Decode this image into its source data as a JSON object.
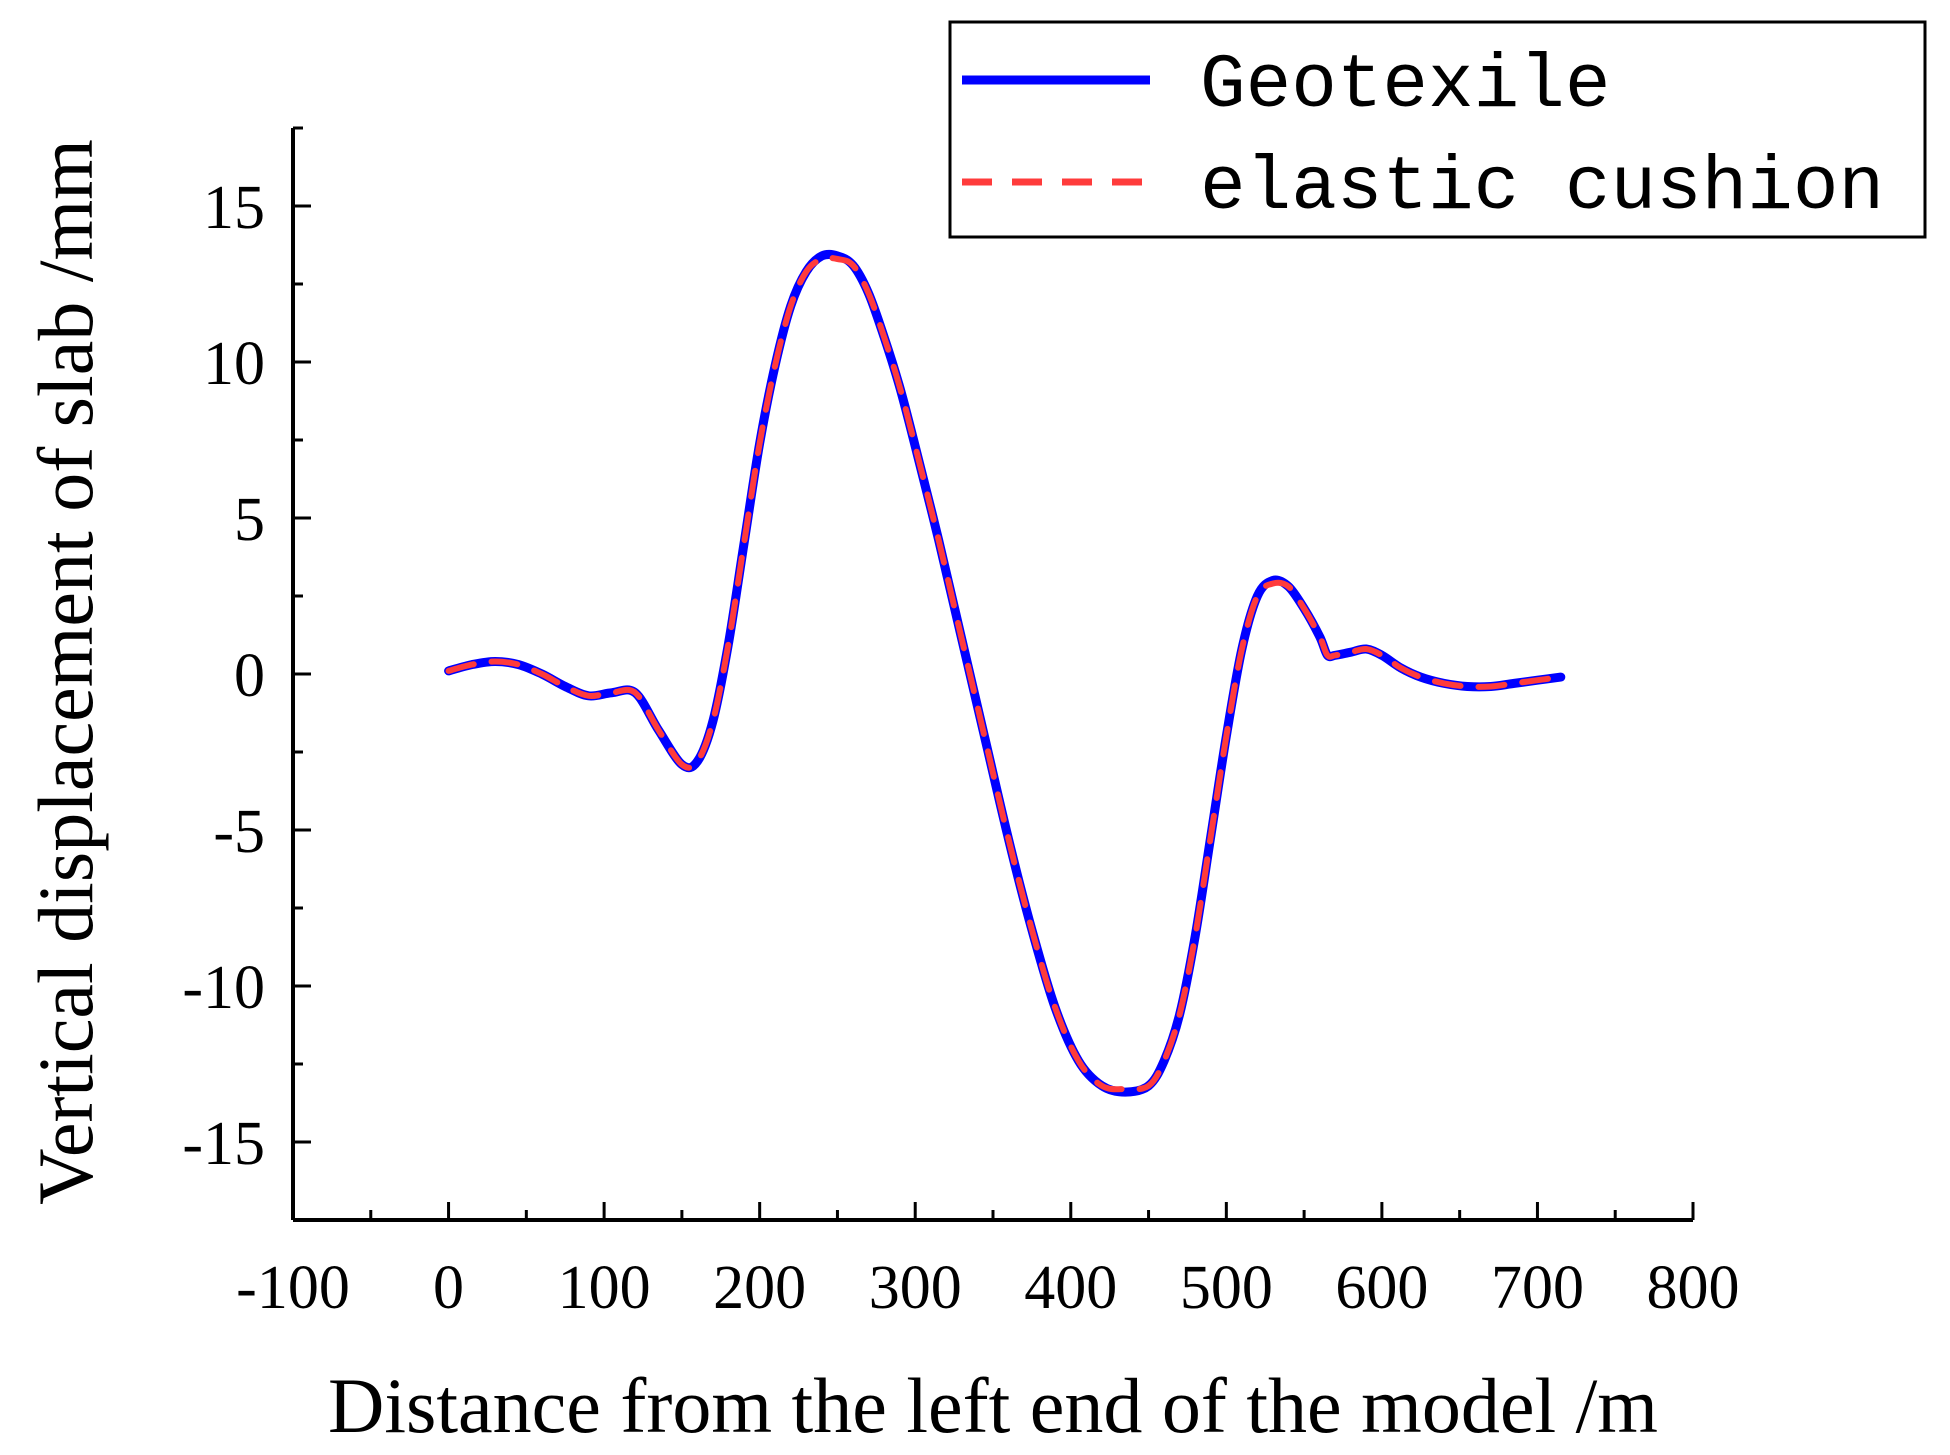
{
  "chart_data": {
    "type": "line",
    "xlabel": "Distance from the left end of the model /m",
    "ylabel": "Vertical displacement of slab /mm",
    "xlim": [
      -100,
      800
    ],
    "ylim": [
      -17.5,
      17.5
    ],
    "x_ticks": [
      -100,
      0,
      100,
      200,
      300,
      400,
      500,
      600,
      700,
      800
    ],
    "x_tick_labels": [
      "-100",
      "0",
      "100",
      "200",
      "300",
      "400",
      "500",
      "600",
      "700",
      "800"
    ],
    "y_ticks": [
      -15,
      -10,
      -5,
      0,
      5,
      10,
      15
    ],
    "y_tick_labels": [
      "-15",
      "-10",
      "-5",
      "0",
      "5",
      "10",
      "15"
    ],
    "grid": false,
    "legend_position": "top-right",
    "x": [
      0,
      15,
      30,
      45,
      60,
      75,
      90,
      105,
      120,
      135,
      150,
      160,
      170,
      180,
      190,
      200,
      210,
      220,
      230,
      240,
      250,
      260,
      270,
      280,
      290,
      300,
      315,
      330,
      345,
      360,
      375,
      390,
      405,
      420,
      435,
      450,
      460,
      470,
      480,
      490,
      500,
      510,
      520,
      530,
      540,
      550,
      560,
      565,
      570,
      580,
      590,
      600,
      612,
      625,
      640,
      655,
      670,
      685,
      700,
      715
    ],
    "series": [
      {
        "name": "Geotexile",
        "color": "#0000ff",
        "style": "solid",
        "values": [
          0.1,
          0.3,
          0.4,
          0.3,
          0.0,
          -0.4,
          -0.7,
          -0.6,
          -0.6,
          -1.8,
          -2.9,
          -2.8,
          -1.5,
          1.0,
          4.2,
          7.4,
          9.9,
          11.8,
          12.9,
          13.4,
          13.4,
          13.1,
          12.2,
          10.8,
          9.2,
          7.3,
          4.3,
          1.1,
          -2.1,
          -5.3,
          -8.2,
          -10.7,
          -12.4,
          -13.2,
          -13.4,
          -13.2,
          -12.4,
          -10.9,
          -8.4,
          -5.2,
          -2.0,
          0.8,
          2.5,
          3.0,
          2.8,
          2.1,
          1.2,
          0.6,
          0.6,
          0.7,
          0.8,
          0.6,
          0.2,
          -0.1,
          -0.3,
          -0.4,
          -0.4,
          -0.3,
          -0.2,
          -0.1
        ]
      },
      {
        "name": "elastic cushion",
        "color": "#ff3b3b",
        "style": "dashed",
        "values": [
          0.1,
          0.3,
          0.4,
          0.3,
          0.0,
          -0.4,
          -0.7,
          -0.6,
          -0.6,
          -1.8,
          -2.9,
          -2.8,
          -1.5,
          1.0,
          4.2,
          7.4,
          9.9,
          11.8,
          12.9,
          13.3,
          13.3,
          13.1,
          12.2,
          10.8,
          9.2,
          7.3,
          4.3,
          1.1,
          -2.1,
          -5.3,
          -8.2,
          -10.7,
          -12.4,
          -13.2,
          -13.3,
          -13.2,
          -12.4,
          -10.9,
          -8.4,
          -5.2,
          -2.0,
          0.8,
          2.5,
          2.9,
          2.8,
          2.1,
          1.2,
          0.6,
          0.6,
          0.7,
          0.8,
          0.6,
          0.2,
          -0.1,
          -0.3,
          -0.4,
          -0.4,
          -0.3,
          -0.2,
          -0.1
        ]
      }
    ]
  }
}
